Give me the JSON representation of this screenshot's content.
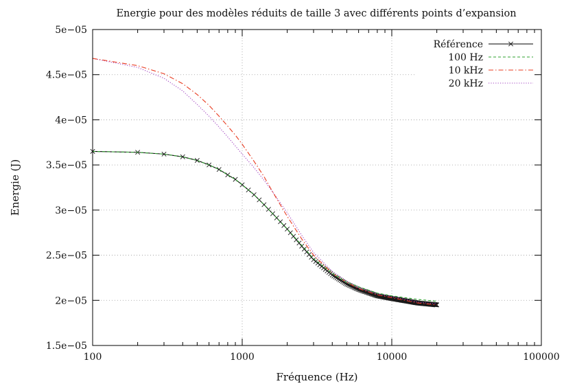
{
  "chart_data": {
    "type": "line",
    "title": "Energie pour des modèles réduits de taille 3 avec différents points d’expansion",
    "xlabel": "Fréquence (Hz)",
    "ylabel": "Energie (J)",
    "x_scale": "log",
    "xlim": [
      100,
      100000
    ],
    "ylim": [
      1.5e-05,
      5e-05
    ],
    "x_ticks": [
      100,
      1000,
      10000,
      100000
    ],
    "x_tick_labels": [
      "100",
      "1000",
      "10000",
      "100000"
    ],
    "y_ticks": [
      1.5e-05,
      2e-05,
      2.5e-05,
      3e-05,
      3.5e-05,
      4e-05,
      4.5e-05,
      5e-05
    ],
    "y_tick_labels": [
      "1.5e−05",
      "2e−05",
      "2.5e−05",
      "3e−05",
      "3.5e−05",
      "4e−05",
      "4.5e−05",
      "5e−05"
    ],
    "grid": true,
    "legend_position": "top-right",
    "series": [
      {
        "name": "Référence",
        "color": "#000000",
        "style": "solid-with-x-markers",
        "marker_x_step": 100,
        "x": [
          100,
          200,
          300,
          400,
          500,
          600,
          700,
          800,
          900,
          1000,
          1200,
          1400,
          1600,
          2000,
          2500,
          3000,
          4000,
          5000,
          6000,
          8000,
          10000,
          15000,
          20000
        ],
        "y": [
          3.65e-05,
          3.64e-05,
          3.62e-05,
          3.59e-05,
          3.55e-05,
          3.5e-05,
          3.45e-05,
          3.39e-05,
          3.34e-05,
          3.28e-05,
          3.17e-05,
          3.06e-05,
          2.96e-05,
          2.79e-05,
          2.6e-05,
          2.45e-05,
          2.28e-05,
          2.18e-05,
          2.12e-05,
          2.05e-05,
          2.02e-05,
          1.97e-05,
          1.95e-05
        ]
      },
      {
        "name": "100 Hz",
        "color": "#2ea02e",
        "style": "dashed",
        "x": [
          100,
          200,
          300,
          400,
          500,
          600,
          700,
          800,
          900,
          1000,
          1200,
          1400,
          1600,
          2000,
          2500,
          3000,
          4000,
          5000,
          6000,
          8000,
          10000,
          15000,
          20000
        ],
        "y": [
          3.65e-05,
          3.64e-05,
          3.62e-05,
          3.59e-05,
          3.55e-05,
          3.5e-05,
          3.45e-05,
          3.39e-05,
          3.34e-05,
          3.28e-05,
          3.17e-05,
          3.06e-05,
          2.96e-05,
          2.79e-05,
          2.61e-05,
          2.46e-05,
          2.3e-05,
          2.2e-05,
          2.15e-05,
          2.08e-05,
          2.05e-05,
          2.01e-05,
          1.99e-05
        ]
      },
      {
        "name": "10 kHz",
        "color": "#e8391e",
        "style": "dash-dot",
        "x": [
          100,
          200,
          300,
          400,
          500,
          600,
          700,
          800,
          900,
          1000,
          1200,
          1400,
          1600,
          2000,
          2500,
          3000,
          4000,
          5000,
          6000,
          8000,
          10000,
          15000,
          20000
        ],
        "y": [
          4.68e-05,
          4.6e-05,
          4.51e-05,
          4.4e-05,
          4.28e-05,
          4.16e-05,
          4.04e-05,
          3.93e-05,
          3.83e-05,
          3.73e-05,
          3.54e-05,
          3.37e-05,
          3.2e-05,
          2.93e-05,
          2.68e-05,
          2.5e-05,
          2.3e-05,
          2.2e-05,
          2.13e-05,
          2.06e-05,
          2.03e-05,
          1.97e-05,
          1.95e-05
        ]
      },
      {
        "name": "20 kHz",
        "color": "#a040c0",
        "style": "dotted",
        "x": [
          100,
          200,
          300,
          400,
          500,
          600,
          700,
          800,
          900,
          1000,
          1200,
          1400,
          1600,
          2000,
          2500,
          3000,
          4000,
          5000,
          6000,
          8000,
          10000,
          15000,
          20000
        ],
        "y": [
          4.68e-05,
          4.58e-05,
          4.46e-05,
          4.32e-05,
          4.17e-05,
          4.04e-05,
          3.92e-05,
          3.81e-05,
          3.71e-05,
          3.62e-05,
          3.47e-05,
          3.33e-05,
          3.2e-05,
          2.97e-05,
          2.72e-05,
          2.53e-05,
          2.32e-05,
          2.21e-05,
          2.14e-05,
          2.07e-05,
          2.04e-05,
          1.98e-05,
          1.96e-05
        ]
      }
    ]
  }
}
